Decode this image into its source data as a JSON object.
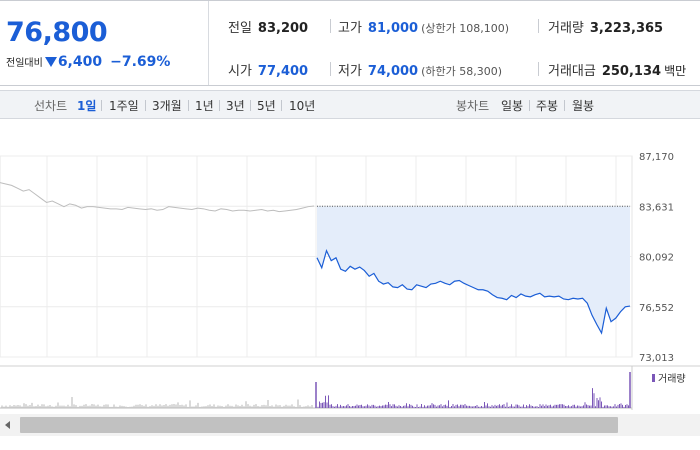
{
  "summary": {
    "price": "76,800",
    "change_label": "전일대비",
    "change_value": "6,400",
    "change_pct": "−7.69%"
  },
  "quote": {
    "prev_label": "전일",
    "prev_value": "83,200",
    "high_label": "고가",
    "high_value": "81,000",
    "upper_limit": "(상한가 108,100)",
    "volume_label": "거래량",
    "volume_value": "3,223,365",
    "open_label": "시가",
    "open_value": "77,400",
    "low_label": "저가",
    "low_value": "74,000",
    "lower_limit": "(하한가 58,300)",
    "amount_label": "거래대금",
    "amount_value": "250,134",
    "amount_unit": "백만"
  },
  "tabs": {
    "line_label": "선차트",
    "line_items": [
      "1일",
      "1주일",
      "3개월",
      "1년",
      "3년",
      "5년",
      "10년"
    ],
    "line_active": 0,
    "candle_label": "봉차트",
    "candle_items": [
      "일봉",
      "주봉",
      "월봉"
    ]
  },
  "colors": {
    "accent": "#1b5ed6",
    "fill": "#e4edfa",
    "prev_line": "#bdbdbd",
    "volume": "#7b57b8"
  },
  "chart_data": {
    "type": "line",
    "yticks": [
      "87,170",
      "83,631",
      "80,092",
      "76,552",
      "73,013"
    ],
    "ylim": [
      73013,
      87170
    ],
    "reference": 83631,
    "previous_series": [
      85300,
      85200,
      85100,
      84900,
      84700,
      84800,
      84500,
      84200,
      83900,
      84000,
      83800,
      83600,
      83800,
      83700,
      83500,
      83600,
      83600,
      83550,
      83500,
      83450,
      83450,
      83400,
      83550,
      83500,
      83450,
      83400,
      83450,
      83350,
      83400,
      83600,
      83550,
      83500,
      83450,
      83400,
      83500,
      83450,
      83350,
      83300,
      83450,
      83400,
      83300,
      83350,
      83350,
      83300,
      83350,
      83400,
      83300,
      83350,
      83250,
      83300,
      83350,
      83400,
      83500,
      83600,
      83650
    ],
    "today_series": [
      80000,
      79300,
      80500,
      79800,
      80000,
      79200,
      79050,
      79400,
      79200,
      79350,
      79100,
      78700,
      78900,
      78350,
      78150,
      78250,
      77950,
      77900,
      78100,
      77800,
      77750,
      78100,
      78000,
      77900,
      78150,
      78200,
      78350,
      78200,
      78100,
      78350,
      78400,
      78200,
      78050,
      77900,
      77750,
      77750,
      77650,
      77400,
      77200,
      77150,
      77050,
      77350,
      77200,
      77450,
      77300,
      77250,
      77400,
      77500,
      77250,
      77300,
      77250,
      77300,
      77100,
      77050,
      77150,
      77100,
      77150,
      76800,
      75950,
      75300,
      74700,
      76450,
      75500,
      75750,
      76200,
      76550,
      76600
    ],
    "volume_label": "거래량"
  }
}
